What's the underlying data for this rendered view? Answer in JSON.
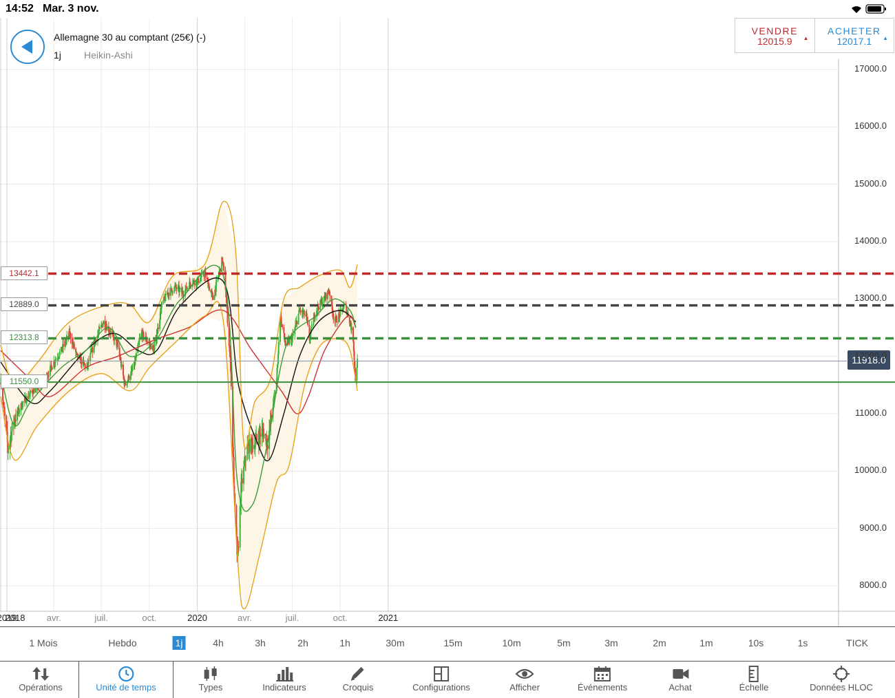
{
  "status": {
    "time": "14:52",
    "date": "Mar. 3 nov."
  },
  "instrument": {
    "name": "Allemagne 30 au comptant (25€) (-)",
    "timeframe": "1j",
    "chart_type": "Heikin-Ashi"
  },
  "trade": {
    "sell_label": "VENDRE",
    "sell_price": "12015.9",
    "buy_label": "ACHETER",
    "buy_price": "12017.1"
  },
  "current_price": "11918.0",
  "levels": [
    {
      "value": "13442.1",
      "color": "#c0292c"
    },
    {
      "value": "12889.0",
      "color": "#444444"
    },
    {
      "value": "12313.8",
      "color": "#3c8f3c"
    },
    {
      "value": "11550.0",
      "color": "#3c8f3c"
    }
  ],
  "timeframes": [
    "1 Mois",
    "Hebdo",
    "1j",
    "4h",
    "3h",
    "2h",
    "1h",
    "30m",
    "15m",
    "10m",
    "5m",
    "3m",
    "2m",
    "1m",
    "10s",
    "1s",
    "TICK"
  ],
  "active_timeframe": "1j",
  "toolbar": [
    {
      "label": "Opérations",
      "icon": "sort-arrows-icon"
    },
    {
      "label": "Unité de temps",
      "icon": "clock-icon"
    },
    {
      "label": "Types",
      "icon": "candles-icon"
    },
    {
      "label": "Indicateurs",
      "icon": "bar-chart-icon"
    },
    {
      "label": "Croquis",
      "icon": "pencil-icon"
    },
    {
      "label": "Configurations",
      "icon": "layout-icon"
    },
    {
      "label": "Afficher",
      "icon": "eye-icon"
    },
    {
      "label": "Événements",
      "icon": "calendar-icon"
    },
    {
      "label": "Achat",
      "icon": "camera-icon"
    },
    {
      "label": "Échelle",
      "icon": "ruler-icon"
    },
    {
      "label": "Données HLOC",
      "icon": "crosshair-icon"
    }
  ],
  "active_tool": "Unité de temps",
  "chart_data": {
    "type": "candlestick",
    "subtype": "Heikin-Ashi",
    "y_ticks": [
      8000,
      9000,
      10000,
      11000,
      12000,
      13000,
      14000,
      15000,
      16000,
      17000
    ],
    "y_tick_labels": [
      "8000.0",
      "9000.0",
      "10000.0",
      "11000.0",
      "12000.0",
      "13000.0",
      "14000.0",
      "15000.0",
      "16000.0",
      "17000.0"
    ],
    "ylim": [
      7600,
      17200
    ],
    "x_labels": [
      {
        "label": "2018",
        "date": "2018-12-20",
        "bold": true
      },
      {
        "label": "2019",
        "date": "2019-01-01",
        "bold": true
      },
      {
        "label": "avr.",
        "date": "2019-04-01",
        "bold": false
      },
      {
        "label": "juil.",
        "date": "2019-07-01",
        "bold": false
      },
      {
        "label": "oct.",
        "date": "2019-10-01",
        "bold": false
      },
      {
        "label": "2020",
        "date": "2020-01-01",
        "bold": true
      },
      {
        "label": "avr.",
        "date": "2020-04-01",
        "bold": false
      },
      {
        "label": "juil.",
        "date": "2020-07-01",
        "bold": false
      },
      {
        "label": "oct.",
        "date": "2020-10-01",
        "bold": false
      },
      {
        "label": "2021",
        "date": "2021-01-01",
        "bold": true
      }
    ],
    "price_path": [
      [
        "2018-12-20",
        11600
      ],
      [
        "2019-01-03",
        10400
      ],
      [
        "2019-01-15",
        10900
      ],
      [
        "2019-02-01",
        11200
      ],
      [
        "2019-02-20",
        11400
      ],
      [
        "2019-03-15",
        11600
      ],
      [
        "2019-04-01",
        11900
      ],
      [
        "2019-04-15",
        12100
      ],
      [
        "2019-05-01",
        12400
      ],
      [
        "2019-05-15",
        12000
      ],
      [
        "2019-06-03",
        11800
      ],
      [
        "2019-06-20",
        12300
      ],
      [
        "2019-07-05",
        12600
      ],
      [
        "2019-07-20",
        12400
      ],
      [
        "2019-08-01",
        12200
      ],
      [
        "2019-08-15",
        11500
      ],
      [
        "2019-09-01",
        11800
      ],
      [
        "2019-09-15",
        12400
      ],
      [
        "2019-09-25",
        12300
      ],
      [
        "2019-10-10",
        12100
      ],
      [
        "2019-10-25",
        12900
      ],
      [
        "2019-11-05",
        13100
      ],
      [
        "2019-11-20",
        13200
      ],
      [
        "2019-12-05",
        13100
      ],
      [
        "2019-12-20",
        13300
      ],
      [
        "2020-01-01",
        13300
      ],
      [
        "2020-01-15",
        13450
      ],
      [
        "2020-01-31",
        13000
      ],
      [
        "2020-02-18",
        13700
      ],
      [
        "2020-02-24",
        13200
      ],
      [
        "2020-03-05",
        11800
      ],
      [
        "2020-03-12",
        9500
      ],
      [
        "2020-03-18",
        8400
      ],
      [
        "2020-03-25",
        9700
      ],
      [
        "2020-04-05",
        10400
      ],
      [
        "2020-04-20",
        10500
      ],
      [
        "2020-05-05",
        10700
      ],
      [
        "2020-05-15",
        10500
      ],
      [
        "2020-06-01",
        11600
      ],
      [
        "2020-06-08",
        12700
      ],
      [
        "2020-06-18",
        12200
      ],
      [
        "2020-07-01",
        12300
      ],
      [
        "2020-07-15",
        12800
      ],
      [
        "2020-07-28",
        12700
      ],
      [
        "2020-08-03",
        12300
      ],
      [
        "2020-08-15",
        12800
      ],
      [
        "2020-08-31",
        13000
      ],
      [
        "2020-09-10",
        13150
      ],
      [
        "2020-09-20",
        12600
      ],
      [
        "2020-09-28",
        12700
      ],
      [
        "2020-10-10",
        12900
      ],
      [
        "2020-10-20",
        12600
      ],
      [
        "2020-10-26",
        12300
      ],
      [
        "2020-10-30",
        11600
      ],
      [
        "2020-11-03",
        11918
      ]
    ],
    "series": [
      {
        "name": "",
        "color": "#111111",
        "points": [
          [
            "2018-12-20",
            11900
          ],
          [
            "2019-02-15",
            11200
          ],
          [
            "2019-03-25",
            11400
          ],
          [
            "2019-06-01",
            12100
          ],
          [
            "2019-07-25",
            12400
          ],
          [
            "2019-09-10",
            12100
          ],
          [
            "2019-10-15",
            12100
          ],
          [
            "2019-12-01",
            12900
          ],
          [
            "2020-02-20",
            13300
          ],
          [
            "2020-03-20",
            11500
          ],
          [
            "2020-04-25",
            10500
          ],
          [
            "2020-05-18",
            10200
          ],
          [
            "2020-06-15",
            11000
          ],
          [
            "2020-07-15",
            12000
          ],
          [
            "2020-08-20",
            12600
          ],
          [
            "2020-10-01",
            12800
          ],
          [
            "2020-10-31",
            12600
          ]
        ]
      },
      {
        "name": "",
        "color": "#d03030",
        "points": [
          [
            "2018-12-20",
            12100
          ],
          [
            "2019-02-15",
            11600
          ],
          [
            "2019-03-25",
            11300
          ],
          [
            "2019-06-01",
            11800
          ],
          [
            "2019-08-01",
            12000
          ],
          [
            "2019-10-15",
            12300
          ],
          [
            "2019-12-15",
            12500
          ],
          [
            "2020-02-20",
            12800
          ],
          [
            "2020-04-15",
            12100
          ],
          [
            "2020-06-10",
            11400
          ],
          [
            "2020-07-10",
            11000
          ],
          [
            "2020-08-01",
            11300
          ],
          [
            "2020-09-01",
            12100
          ],
          [
            "2020-10-15",
            12700
          ],
          [
            "2020-10-31",
            12500
          ]
        ]
      },
      {
        "name": "",
        "color": "#3d9a3d",
        "points": [
          [
            "2018-12-20",
            11700
          ],
          [
            "2019-01-15",
            10800
          ],
          [
            "2019-02-15",
            11200
          ],
          [
            "2019-04-15",
            11800
          ],
          [
            "2019-06-01",
            12100
          ],
          [
            "2019-07-15",
            12500
          ],
          [
            "2019-08-25",
            12000
          ],
          [
            "2019-10-15",
            12300
          ],
          [
            "2019-12-01",
            13000
          ],
          [
            "2020-02-20",
            13400
          ],
          [
            "2020-03-18",
            9800
          ],
          [
            "2020-04-15",
            9400
          ],
          [
            "2020-05-15",
            10500
          ],
          [
            "2020-06-20",
            12200
          ],
          [
            "2020-08-15",
            12700
          ],
          [
            "2020-09-20",
            13000
          ],
          [
            "2020-10-20",
            12800
          ],
          [
            "2020-10-31",
            12500
          ]
        ]
      },
      {
        "name": "",
        "color": "#e8a21e",
        "points": [
          [
            "2018-12-20",
            12200
          ],
          [
            "2019-01-15",
            11500
          ],
          [
            "2019-03-01",
            11900
          ],
          [
            "2019-05-01",
            12600
          ],
          [
            "2019-07-15",
            12900
          ],
          [
            "2019-08-25",
            12900
          ],
          [
            "2019-10-01",
            12600
          ],
          [
            "2019-11-15",
            13400
          ],
          [
            "2020-01-15",
            13600
          ],
          [
            "2020-02-20",
            14700
          ],
          [
            "2020-03-15",
            13800
          ],
          [
            "2020-03-30",
            10500
          ],
          [
            "2020-04-20",
            11200
          ],
          [
            "2020-05-20",
            11600
          ],
          [
            "2020-06-15",
            13000
          ],
          [
            "2020-07-15",
            13200
          ],
          [
            "2020-08-20",
            13400
          ],
          [
            "2020-10-01",
            13500
          ],
          [
            "2020-10-20",
            13200
          ],
          [
            "2020-11-03",
            13600
          ]
        ]
      },
      {
        "name": "",
        "color": "#e8a21e",
        "points": [
          [
            "2018-12-20",
            11300
          ],
          [
            "2019-01-15",
            10200
          ],
          [
            "2019-03-01",
            10800
          ],
          [
            "2019-05-01",
            11400
          ],
          [
            "2019-07-01",
            11700
          ],
          [
            "2019-08-25",
            11400
          ],
          [
            "2019-10-01",
            11800
          ],
          [
            "2019-11-15",
            12200
          ],
          [
            "2020-01-15",
            12700
          ],
          [
            "2020-02-20",
            12600
          ],
          [
            "2020-03-18",
            8500
          ],
          [
            "2020-04-01",
            7600
          ],
          [
            "2020-05-01",
            8600
          ],
          [
            "2020-06-01",
            9800
          ],
          [
            "2020-06-25",
            10100
          ],
          [
            "2020-07-25",
            11500
          ],
          [
            "2020-08-25",
            12200
          ],
          [
            "2020-10-01",
            12300
          ],
          [
            "2020-10-20",
            12100
          ],
          [
            "2020-11-03",
            11400
          ]
        ]
      }
    ]
  }
}
